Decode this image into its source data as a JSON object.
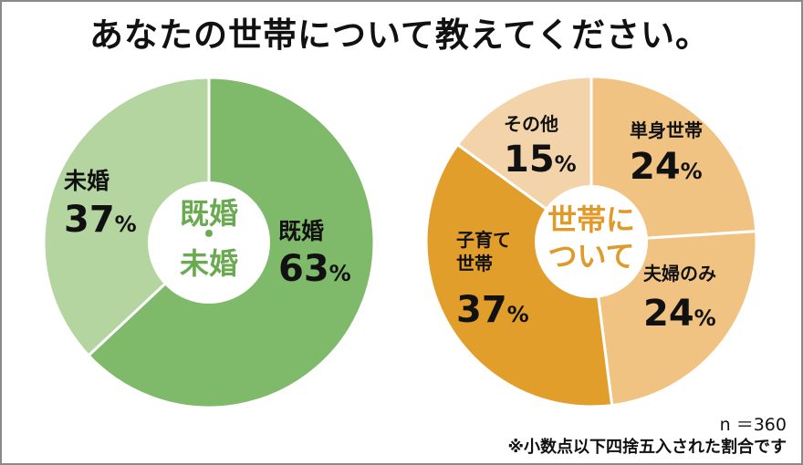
{
  "title": "あなたの世帯について教えてください。",
  "sample_size": "n ＝360",
  "footnote": "※小数点以下四捨五入された割合です",
  "chart_data": [
    {
      "type": "pie",
      "center_label": [
        "既婚",
        "・",
        "未婚"
      ],
      "slices": [
        {
          "label": "既婚",
          "value": 63,
          "display": "63",
          "color": "#7fb96a"
        },
        {
          "label": "未婚",
          "value": 37,
          "display": "37",
          "color": "#b4d4a0"
        }
      ],
      "unit": "%",
      "center_color": "#6aaa50"
    },
    {
      "type": "pie",
      "center_label": [
        "世帯に",
        "ついて"
      ],
      "slices": [
        {
          "label": "単身世帯",
          "value": 24,
          "display": "24",
          "color": "#f0c383"
        },
        {
          "label": "夫婦のみ",
          "value": 24,
          "display": "24",
          "color": "#f0c383"
        },
        {
          "label": "子育て\n世帯",
          "value": 37,
          "display": "37",
          "color": "#e29e2b"
        },
        {
          "label": "その他",
          "value": 15,
          "display": "15",
          "color": "#f3d3aa"
        }
      ],
      "unit": "%",
      "center_color": "#e09a2a"
    }
  ]
}
